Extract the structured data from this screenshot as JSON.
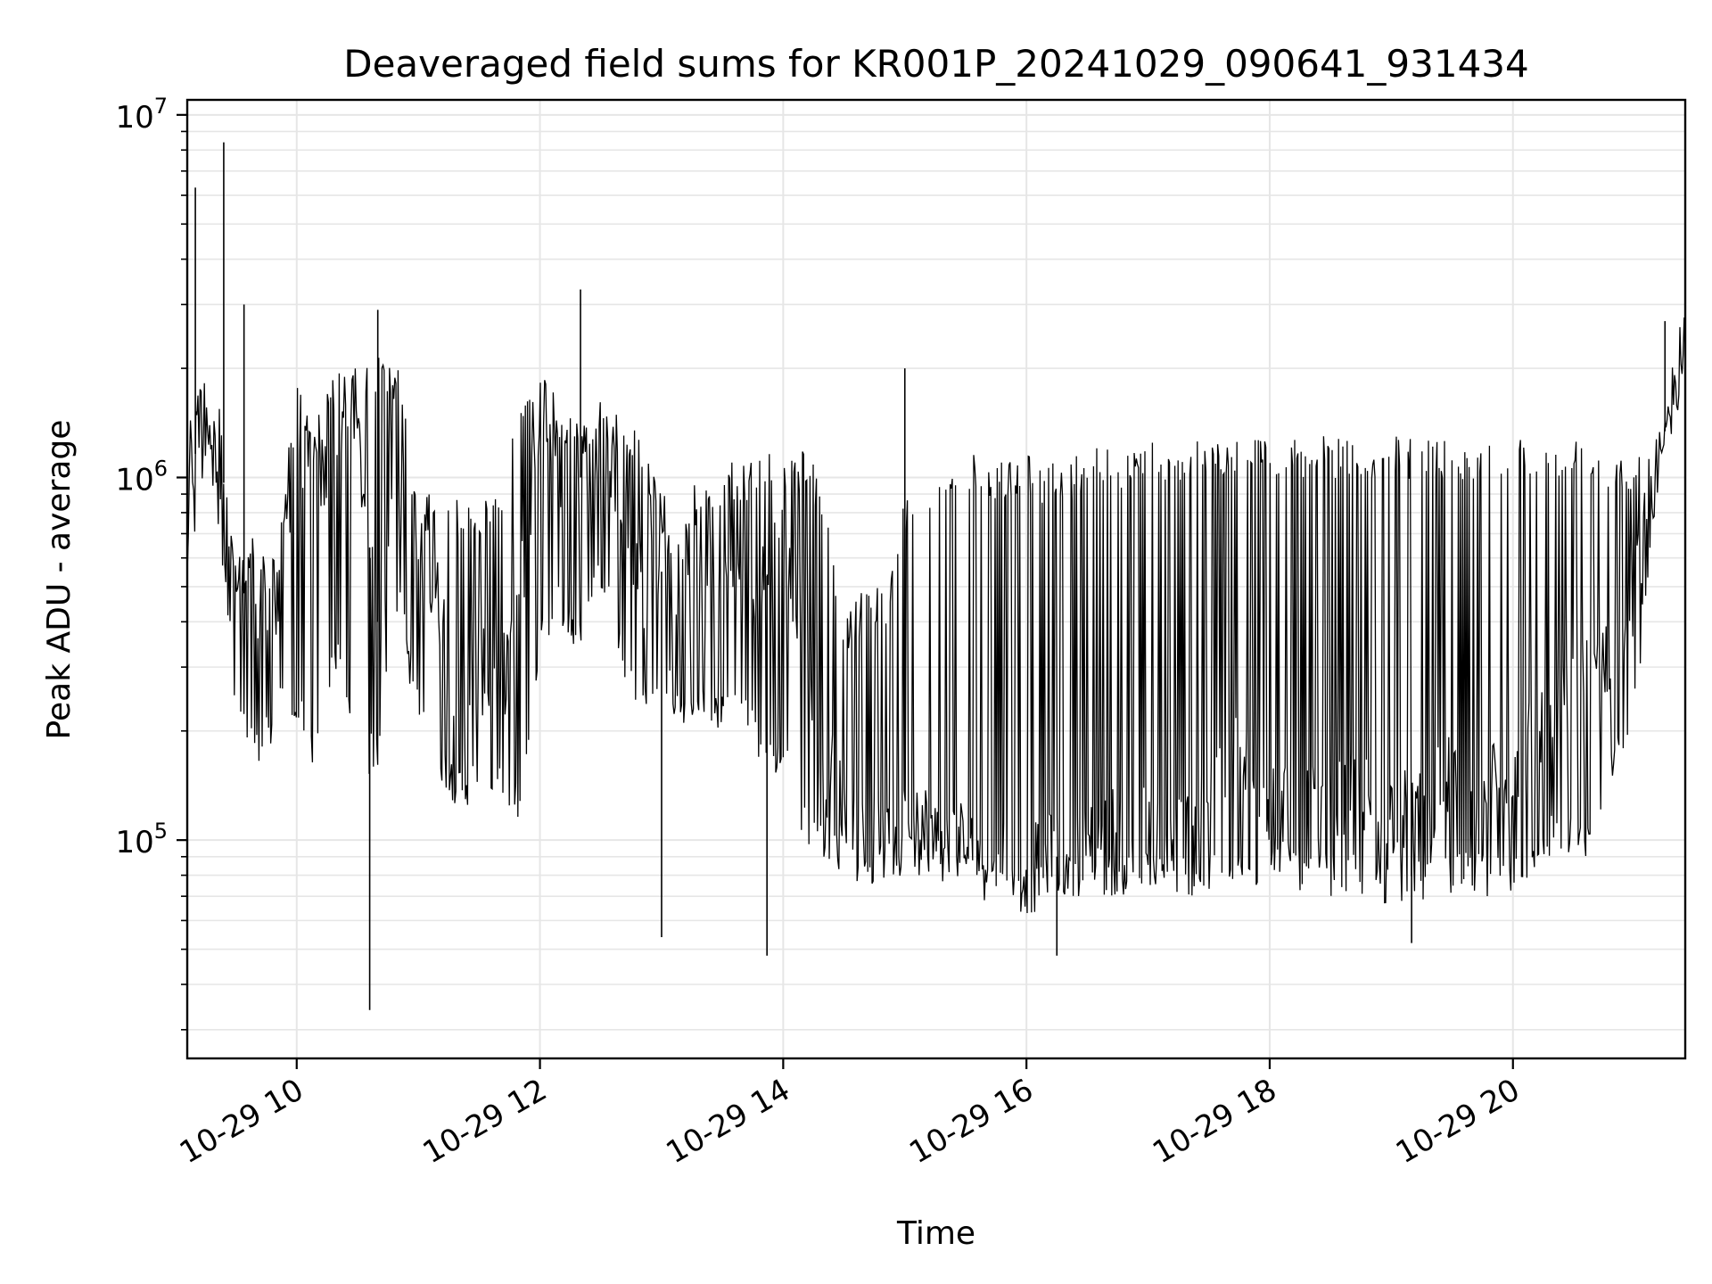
{
  "chart_data": {
    "type": "line",
    "title": "Deaveraged field sums for KR001P_20241029_090641_931434",
    "xlabel": "Time",
    "ylabel": "Peak ADU - average",
    "yscale": "log",
    "ylim": [
      25000,
      11000000
    ],
    "xlim": [
      "2024-10-29 09:06",
      "2024-10-29 21:25"
    ],
    "grid": true,
    "x_tick_labels": [
      "10-29 10",
      "10-29 12",
      "10-29 14",
      "10-29 16",
      "10-29 18",
      "10-29 20"
    ],
    "x_tick_values": [
      "2024-10-29 10:00",
      "2024-10-29 12:00",
      "2024-10-29 14:00",
      "2024-10-29 16:00",
      "2024-10-29 18:00",
      "2024-10-29 20:00"
    ],
    "y_tick_labels": [
      {
        "base": "10",
        "exp": "5",
        "value": 100000
      },
      {
        "base": "10",
        "exp": "6",
        "value": 1000000
      },
      {
        "base": "10",
        "exp": "7",
        "value": 10000000
      }
    ],
    "series": [
      {
        "color": "#000000",
        "x": [
          "2024-10-29 09:06",
          "2024-10-29 09:15",
          "2024-10-29 09:20",
          "2024-10-29 09:30",
          "2024-10-29 09:40",
          "2024-10-29 09:50",
          "2024-10-29 10:00",
          "2024-10-29 10:10",
          "2024-10-29 10:20",
          "2024-10-29 10:30",
          "2024-10-29 10:40",
          "2024-10-29 10:50",
          "2024-10-29 11:00",
          "2024-10-29 11:10",
          "2024-10-29 11:20",
          "2024-10-29 11:30",
          "2024-10-29 11:40",
          "2024-10-29 11:50",
          "2024-10-29 12:00",
          "2024-10-29 12:10",
          "2024-10-29 12:20",
          "2024-10-29 12:30",
          "2024-10-29 12:40",
          "2024-10-29 12:50",
          "2024-10-29 13:00",
          "2024-10-29 13:10",
          "2024-10-29 13:20",
          "2024-10-29 13:30",
          "2024-10-29 13:40",
          "2024-10-29 13:50",
          "2024-10-29 14:00",
          "2024-10-29 14:10",
          "2024-10-29 14:20",
          "2024-10-29 14:30",
          "2024-10-29 14:40",
          "2024-10-29 14:50",
          "2024-10-29 15:00",
          "2024-10-29 15:10",
          "2024-10-29 15:20",
          "2024-10-29 15:30",
          "2024-10-29 15:40",
          "2024-10-29 15:50",
          "2024-10-29 16:00",
          "2024-10-29 16:10",
          "2024-10-29 16:20",
          "2024-10-29 16:30",
          "2024-10-29 16:40",
          "2024-10-29 16:50",
          "2024-10-29 17:00",
          "2024-10-29 17:10",
          "2024-10-29 17:20",
          "2024-10-29 17:30",
          "2024-10-29 17:40",
          "2024-10-29 17:50",
          "2024-10-29 18:00",
          "2024-10-29 18:10",
          "2024-10-29 18:20",
          "2024-10-29 18:30",
          "2024-10-29 18:40",
          "2024-10-29 18:50",
          "2024-10-29 19:00",
          "2024-10-29 19:10",
          "2024-10-29 19:20",
          "2024-10-29 19:30",
          "2024-10-29 19:40",
          "2024-10-29 19:50",
          "2024-10-29 20:00",
          "2024-10-29 20:10",
          "2024-10-29 20:20",
          "2024-10-29 20:30",
          "2024-10-29 20:40",
          "2024-10-29 20:50",
          "2024-10-29 21:00",
          "2024-10-29 21:10",
          "2024-10-29 21:20",
          "2024-10-29 21:25"
        ],
        "y": [
          900000,
          1600000,
          1500000,
          500000,
          450000,
          400000,
          1400000,
          900000,
          1200000,
          1300000,
          400000,
          1100000,
          600000,
          450000,
          250000,
          300000,
          250000,
          450000,
          1600000,
          1100000,
          1000000,
          1300000,
          800000,
          500000,
          550000,
          500000,
          500000,
          550000,
          550000,
          500000,
          700000,
          300000,
          180000,
          120000,
          100000,
          100000,
          140000,
          110000,
          100000,
          100000,
          90000,
          90000,
          80000,
          90000,
          90000,
          100000,
          110000,
          100000,
          110000,
          100000,
          110000,
          150000,
          170000,
          160000,
          130000,
          130000,
          120000,
          120000,
          130000,
          130000,
          120000,
          120000,
          130000,
          150000,
          140000,
          150000,
          160000,
          200000,
          220000,
          250000,
          300000,
          350000,
          500000,
          1000000,
          1800000,
          2200000
        ],
        "y_spread": {
          "upper": [
            1800000,
            2000000,
            2000000,
            600000,
            700000,
            600000,
            2000000,
            1500000,
            2000000,
            2000000,
            2200000,
            2000000,
            900000,
            900000,
            900000,
            900000,
            900000,
            1800000,
            2000000,
            1600000,
            1500000,
            1500000,
            1500000,
            1300000,
            900000,
            900000,
            1000000,
            1100000,
            1100000,
            1200000,
            1200000,
            1200000,
            1000000,
            400000,
            500000,
            500000,
            900000,
            1000000,
            1000000,
            1200000,
            1100000,
            1100000,
            1200000,
            1100000,
            1100000,
            1200000,
            1300000,
            1200000,
            1300000,
            1200000,
            1300000,
            1300000,
            1300000,
            1300000,
            1300000,
            1300000,
            1300000,
            1300000,
            1300000,
            1300000,
            1300000,
            1300000,
            1300000,
            1300000,
            1300000,
            1300000,
            1300000,
            1300000,
            1300000,
            1300000,
            1300000,
            1200000,
            1200000,
            1300000,
            2100000,
            2400000
          ],
          "lower": [
            500000,
            1000000,
            900000,
            200000,
            150000,
            200000,
            200000,
            150000,
            300000,
            150000,
            150000,
            400000,
            200000,
            150000,
            120000,
            130000,
            120000,
            110000,
            300000,
            400000,
            300000,
            500000,
            300000,
            200000,
            250000,
            200000,
            200000,
            200000,
            200000,
            150000,
            150000,
            100000,
            90000,
            80000,
            75000,
            70000,
            80000,
            80000,
            75000,
            80000,
            75000,
            70000,
            65000,
            70000,
            70000,
            70000,
            70000,
            70000,
            70000,
            70000,
            70000,
            70000,
            70000,
            70000,
            75000,
            75000,
            70000,
            70000,
            70000,
            70000,
            65000,
            65000,
            70000,
            70000,
            70000,
            70000,
            70000,
            80000,
            90000,
            90000,
            90000,
            150000,
            200000,
            800000,
            1500000,
            1900000
          ]
        },
        "spikes": [
          {
            "x": "2024-10-29 09:10",
            "y": 6300000
          },
          {
            "x": "2024-10-29 09:24",
            "y": 8400000
          },
          {
            "x": "2024-10-29 09:34",
            "y": 3000000
          },
          {
            "x": "2024-10-29 10:36",
            "y": 34000
          },
          {
            "x": "2024-10-29 10:40",
            "y": 2900000
          },
          {
            "x": "2024-10-29 12:20",
            "y": 3300000
          },
          {
            "x": "2024-10-29 13:00",
            "y": 54000
          },
          {
            "x": "2024-10-29 13:52",
            "y": 48000
          },
          {
            "x": "2024-10-29 15:00",
            "y": 2000000
          },
          {
            "x": "2024-10-29 16:15",
            "y": 48000
          },
          {
            "x": "2024-10-29 19:10",
            "y": 52000
          },
          {
            "x": "2024-10-29 21:15",
            "y": 2700000
          }
        ]
      }
    ]
  }
}
